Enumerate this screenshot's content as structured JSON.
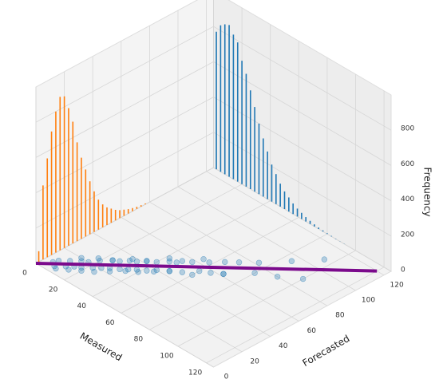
{
  "chart_data": {
    "type": "scatter3d",
    "xlabel": "Measured",
    "ylabel": "Forecasted",
    "zlabel": "Frequency",
    "xlim": [
      0,
      125
    ],
    "ylim": [
      0,
      125
    ],
    "zlim": [
      0,
      1000
    ],
    "xticks": [
      0,
      20,
      40,
      60,
      80,
      100,
      120
    ],
    "yticks": [
      0,
      20,
      40,
      60,
      80,
      100,
      120
    ],
    "zticks": [
      0,
      200,
      400,
      600,
      800
    ],
    "grid": true,
    "scatter": {
      "color": "#1f77b4",
      "x": [
        5,
        8,
        10,
        12,
        14,
        15,
        17,
        18,
        20,
        22,
        24,
        25,
        27,
        28,
        30,
        32,
        33,
        35,
        36,
        38,
        40,
        42,
        44,
        45,
        47,
        50,
        52,
        55,
        58,
        60,
        63,
        65,
        68,
        70,
        75,
        80,
        85,
        90,
        95,
        100,
        10,
        15,
        20,
        25,
        30,
        35,
        40,
        45,
        50,
        60,
        70,
        6,
        12,
        18,
        24,
        30,
        36,
        42,
        48,
        54
      ],
      "y": [
        7,
        5,
        14,
        9,
        18,
        12,
        20,
        14,
        25,
        18,
        30,
        21,
        32,
        24,
        36,
        27,
        38,
        30,
        42,
        33,
        45,
        36,
        50,
        40,
        52,
        44,
        58,
        48,
        64,
        55,
        70,
        58,
        75,
        62,
        82,
        74,
        95,
        80,
        108,
        88,
        4,
        8,
        12,
        16,
        22,
        28,
        32,
        38,
        44,
        50,
        62,
        10,
        20,
        26,
        30,
        38,
        42,
        52,
        55,
        64
      ]
    },
    "line": {
      "color": "#7b0a8c",
      "x": [
        0,
        120
      ],
      "y": [
        0,
        120
      ]
    },
    "hist_left": {
      "color": "#ff7f0e",
      "x": [
        2,
        5,
        8,
        11,
        14,
        17,
        20,
        23,
        26,
        29,
        32,
        35,
        38,
        41,
        44,
        47,
        50,
        53,
        56,
        59,
        62,
        65,
        68,
        71,
        74,
        77
      ],
      "values": [
        60,
        420,
        560,
        700,
        800,
        870,
        860,
        780,
        690,
        560,
        460,
        380,
        300,
        230,
        170,
        130,
        100,
        80,
        60,
        45,
        35,
        25,
        18,
        12,
        8,
        5
      ]
    },
    "hist_back": {
      "color": "#1f77b4",
      "x": [
        2,
        5,
        8,
        11,
        14,
        17,
        20,
        23,
        26,
        29,
        32,
        35,
        38,
        41,
        44,
        47,
        50,
        53,
        56,
        59,
        62,
        65,
        68,
        71,
        74,
        77,
        80,
        83,
        86,
        89,
        92
      ],
      "values": [
        780,
        830,
        850,
        860,
        820,
        790,
        700,
        640,
        560,
        480,
        400,
        330,
        270,
        210,
        170,
        130,
        100,
        80,
        60,
        45,
        35,
        25,
        18,
        12,
        8,
        6,
        4,
        3,
        2,
        1,
        1
      ]
    }
  }
}
